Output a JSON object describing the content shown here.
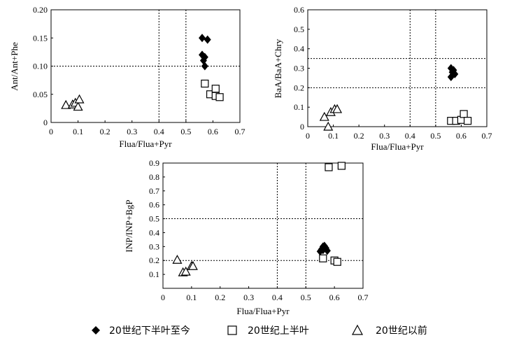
{
  "chart_data": [
    {
      "type": "scatter",
      "xlabel": "Flua/Flua+Pyr",
      "ylabel": "Ant/Ant+Phe",
      "xlim": [
        0,
        0.7
      ],
      "ylim": [
        0,
        0.2
      ],
      "xticks": [
        "0",
        "0.1",
        "0.2",
        "0.3",
        "0.4",
        "0.5",
        "0.6",
        "0.7"
      ],
      "yticks": [
        "0",
        "0.05",
        "0.10",
        "0.15",
        "0.20"
      ],
      "vlines": [
        0.4,
        0.5
      ],
      "hlines": [
        0.1
      ],
      "series": [
        {
          "name": "20世纪下半叶至今",
          "marker": "diamond",
          "points": [
            [
              0.56,
              0.15
            ],
            [
              0.58,
              0.147
            ],
            [
              0.56,
              0.12
            ],
            [
              0.57,
              0.116
            ],
            [
              0.565,
              0.11
            ],
            [
              0.57,
              0.1
            ]
          ]
        },
        {
          "name": "20世纪上半叶",
          "marker": "square",
          "points": [
            [
              0.57,
              0.069
            ],
            [
              0.59,
              0.05
            ],
            [
              0.61,
              0.06
            ],
            [
              0.61,
              0.047
            ],
            [
              0.625,
              0.045
            ]
          ]
        },
        {
          "name": "20世纪以前",
          "marker": "triangle",
          "points": [
            [
              0.055,
              0.031
            ],
            [
              0.08,
              0.032
            ],
            [
              0.09,
              0.035
            ],
            [
              0.1,
              0.028
            ],
            [
              0.105,
              0.041
            ]
          ]
        }
      ]
    },
    {
      "type": "scatter",
      "xlabel": "Flua/Flua+Pyr",
      "ylabel": "BaA/BaA+Chry",
      "xlim": [
        0,
        0.7
      ],
      "ylim": [
        0,
        0.6
      ],
      "xticks": [
        "0",
        "0.1",
        "0.2",
        "0.3",
        "0.4",
        "0.5",
        "0.6",
        "0.7"
      ],
      "yticks": [
        "0",
        "0.1",
        "0.2",
        "0.3",
        "0.4",
        "0.5",
        "0.6"
      ],
      "vlines": [
        0.4,
        0.5
      ],
      "hlines": [
        0.2,
        0.35
      ],
      "series": [
        {
          "name": "20世纪下半叶至今",
          "marker": "diamond",
          "points": [
            [
              0.56,
              0.3
            ],
            [
              0.57,
              0.29
            ],
            [
              0.565,
              0.28
            ],
            [
              0.575,
              0.27
            ],
            [
              0.56,
              0.255
            ]
          ]
        },
        {
          "name": "20世纪上半叶",
          "marker": "square",
          "points": [
            [
              0.56,
              0.03
            ],
            [
              0.58,
              0.03
            ],
            [
              0.6,
              0.035
            ],
            [
              0.61,
              0.065
            ],
            [
              0.625,
              0.03
            ]
          ]
        },
        {
          "name": "20世纪以前",
          "marker": "triangle",
          "points": [
            [
              0.065,
              0.05
            ],
            [
              0.09,
              0.075
            ],
            [
              0.105,
              0.09
            ],
            [
              0.115,
              0.09
            ],
            [
              0.08,
              0.0
            ]
          ]
        }
      ]
    },
    {
      "type": "scatter",
      "xlabel": "Flua/Flua+Pyr",
      "ylabel": "INP/INP+BgP",
      "xlim": [
        0,
        0.7
      ],
      "ylim": [
        0,
        0.9
      ],
      "xticks": [
        "0",
        "0.1",
        "0.2",
        "0.3",
        "0.4",
        "0.5",
        "0.6",
        "0.7"
      ],
      "yticks": [
        "0.1",
        "0.2",
        "0.3",
        "0.4",
        "0.5",
        "0.6",
        "0.7",
        "0.8",
        "0.9"
      ],
      "vlines": [
        0.4,
        0.5
      ],
      "hlines": [
        0.2,
        0.5
      ],
      "series": [
        {
          "name": "20世纪下半叶至今",
          "marker": "diamond",
          "points": [
            [
              0.555,
              0.28
            ],
            [
              0.56,
              0.3
            ],
            [
              0.565,
              0.305
            ],
            [
              0.57,
              0.29
            ],
            [
              0.575,
              0.27
            ],
            [
              0.55,
              0.265
            ],
            [
              0.56,
              0.275
            ]
          ]
        },
        {
          "name": "20世纪上半叶",
          "marker": "square",
          "points": [
            [
              0.56,
              0.215
            ],
            [
              0.58,
              0.87
            ],
            [
              0.6,
              0.2
            ],
            [
              0.61,
              0.19
            ],
            [
              0.625,
              0.88
            ]
          ]
        },
        {
          "name": "20世纪以前",
          "marker": "triangle",
          "points": [
            [
              0.05,
              0.205
            ],
            [
              0.07,
              0.115
            ],
            [
              0.08,
              0.12
            ],
            [
              0.1,
              0.16
            ],
            [
              0.105,
              0.16
            ]
          ]
        }
      ]
    }
  ],
  "legend": [
    {
      "marker": "diamond",
      "label": "20世纪下半叶至今"
    },
    {
      "marker": "square",
      "label": "20世纪上半叶"
    },
    {
      "marker": "triangle",
      "label": "20世纪以前"
    }
  ]
}
